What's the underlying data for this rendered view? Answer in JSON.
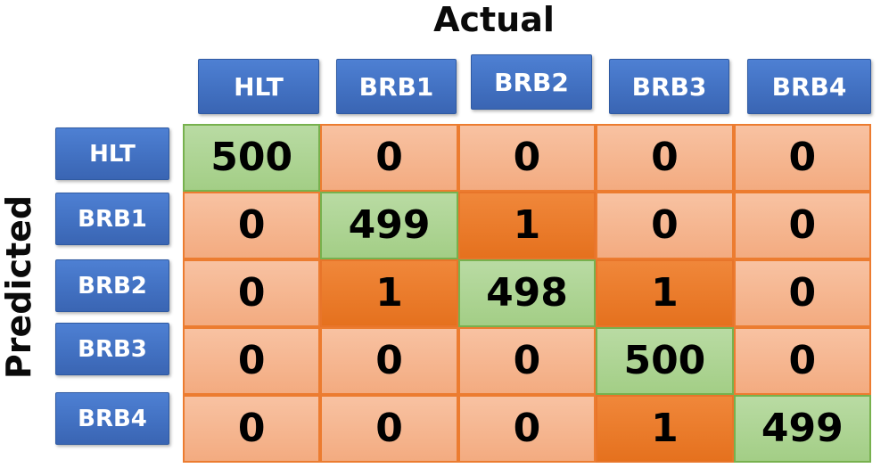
{
  "title": "Actual",
  "y_axis_label": "Predicted",
  "colors": {
    "header_blue": "#4472C4",
    "correct_green": "#A9D18E",
    "correct_green_border": "#70AD47",
    "zero_orange": "#F4B183",
    "error_orange": "#ED7D31",
    "orange_border": "#ED7D31",
    "value_text": "#000000",
    "header_text": "#FFFFFF"
  },
  "chart_data": {
    "type": "heatmap",
    "xlabel": "Actual",
    "ylabel": "Predicted",
    "columns": [
      "HLT",
      "BRB1",
      "BRB2",
      "BRB3",
      "BRB4"
    ],
    "rows": [
      "HLT",
      "BRB1",
      "BRB2",
      "BRB3",
      "BRB4"
    ],
    "values": [
      [
        500,
        0,
        0,
        0,
        0
      ],
      [
        0,
        499,
        1,
        0,
        0
      ],
      [
        0,
        1,
        498,
        1,
        0
      ],
      [
        0,
        0,
        0,
        500,
        0
      ],
      [
        0,
        0,
        0,
        1,
        499
      ]
    ],
    "legend": "none",
    "cell_coloring": "diagonal=green (correct), off-diagonal zero=light orange, off-diagonal nonzero=dark orange"
  }
}
